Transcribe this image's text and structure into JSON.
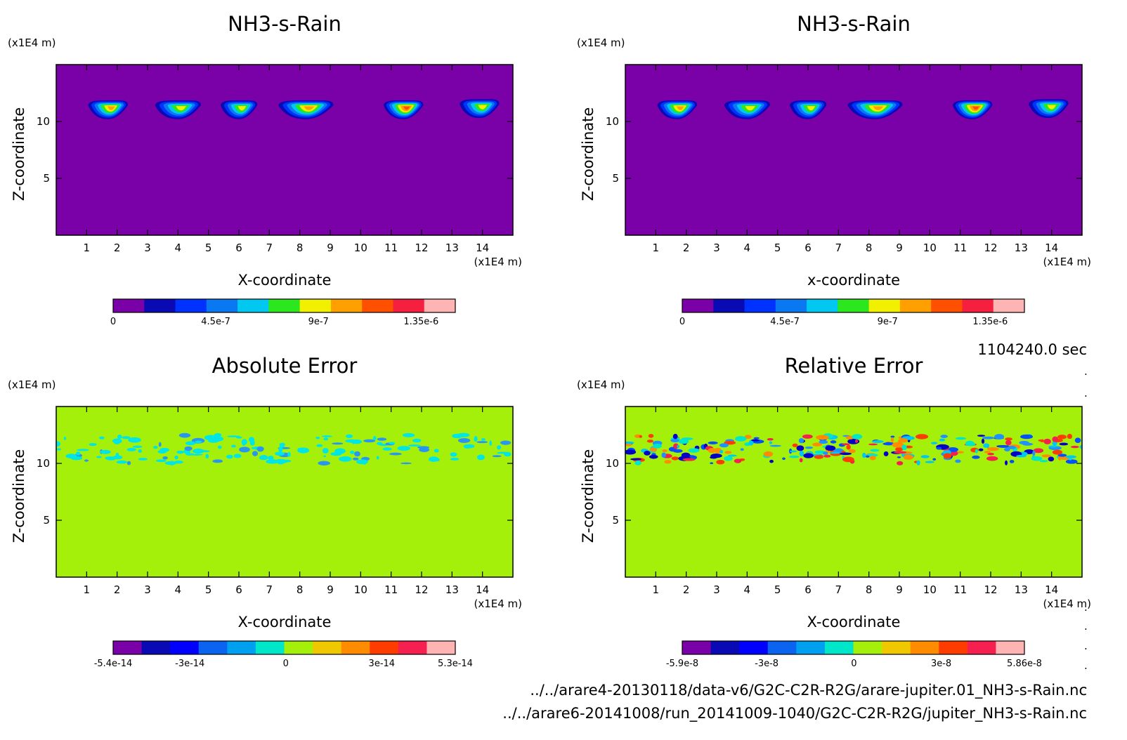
{
  "figure": {
    "time_label": "1104240.0 sec",
    "files": [
      "../../arare4-20130118/data-v6/G2C-C2R-R2G/arare-jupiter.01_NH3-s-Rain.nc",
      "../../arare6-20141008/run_20141009-1040/G2C-C2R-R2G/jupiter_NH3-s-Rain.nc"
    ],
    "edge_marks": [
      ".",
      ".",
      ".",
      ".",
      ".",
      ".",
      "."
    ]
  },
  "chart_data": [
    {
      "type": "heatmap",
      "title": "NH3-s-Rain",
      "xlabel": "X-coordinate",
      "ylabel": "Z-coordinate",
      "x_unit": "(x1E4 m)",
      "y_unit": "(x1E4 m)",
      "xlim": [
        0,
        15
      ],
      "ylim": [
        0,
        15
      ],
      "x_ticks": [
        1,
        2,
        3,
        4,
        5,
        6,
        7,
        8,
        9,
        10,
        11,
        12,
        13,
        14
      ],
      "y_ticks": [
        5,
        10
      ],
      "background": "#7a00a8",
      "pattern": "cells",
      "cells": [
        {
          "x": 1.7,
          "z": 11.2,
          "w": 1.3,
          "peak": 0.85
        },
        {
          "x": 4.0,
          "z": 11.2,
          "w": 1.5,
          "peak": 0.75
        },
        {
          "x": 6.0,
          "z": 11.2,
          "w": 1.2,
          "peak": 0.7
        },
        {
          "x": 8.2,
          "z": 11.2,
          "w": 1.8,
          "peak": 0.85
        },
        {
          "x": 11.4,
          "z": 11.2,
          "w": 1.3,
          "peak": 1.0
        },
        {
          "x": 13.9,
          "z": 11.3,
          "w": 1.3,
          "peak": 0.75
        }
      ],
      "colorbar": {
        "colors": [
          "#7a00a8",
          "#0a0ab4",
          "#0032ff",
          "#0a78f0",
          "#00c8f0",
          "#2ce61e",
          "#f0f000",
          "#ffa000",
          "#ff5000",
          "#f52040",
          "#ffb4b4"
        ],
        "labels": [
          "0",
          "4.5e-7",
          "9e-7",
          "1.35e-6"
        ],
        "label_positions": [
          0,
          4.5e-07,
          9e-07,
          1.35e-06
        ],
        "range": [
          0,
          1.5e-06
        ]
      }
    },
    {
      "type": "heatmap",
      "title": "NH3-s-Rain",
      "xlabel": "x-coordinate",
      "ylabel": "Z-coordinate",
      "x_unit": "(x1E4 m)",
      "y_unit": "(x1E4 m)",
      "xlim": [
        0,
        15
      ],
      "ylim": [
        0,
        15
      ],
      "x_ticks": [
        1,
        2,
        3,
        4,
        5,
        6,
        7,
        8,
        9,
        10,
        11,
        12,
        13,
        14
      ],
      "y_ticks": [
        5,
        10
      ],
      "background": "#7a00a8",
      "pattern": "cells",
      "cells": [
        {
          "x": 1.7,
          "z": 11.2,
          "w": 1.3,
          "peak": 0.85
        },
        {
          "x": 4.0,
          "z": 11.2,
          "w": 1.5,
          "peak": 0.75
        },
        {
          "x": 6.0,
          "z": 11.2,
          "w": 1.2,
          "peak": 0.7
        },
        {
          "x": 8.2,
          "z": 11.2,
          "w": 1.8,
          "peak": 0.85
        },
        {
          "x": 11.4,
          "z": 11.2,
          "w": 1.3,
          "peak": 1.0
        },
        {
          "x": 13.9,
          "z": 11.3,
          "w": 1.3,
          "peak": 0.75
        }
      ],
      "colorbar": {
        "colors": [
          "#7a00a8",
          "#0a0ab4",
          "#0032ff",
          "#0a78f0",
          "#00c8f0",
          "#2ce61e",
          "#f0f000",
          "#ffa000",
          "#ff5000",
          "#f52040",
          "#ffb4b4"
        ],
        "labels": [
          "0",
          "4.5e-7",
          "9e-7",
          "1.35e-6"
        ],
        "label_positions": [
          0,
          4.5e-07,
          9e-07,
          1.35e-06
        ],
        "range": [
          0,
          1.5e-06
        ]
      }
    },
    {
      "type": "heatmap",
      "title": "Absolute Error",
      "xlabel": "X-coordinate",
      "ylabel": "Z-coordinate",
      "x_unit": "(x1E4 m)",
      "y_unit": "(x1E4 m)",
      "xlim": [
        0,
        15
      ],
      "ylim": [
        0,
        15
      ],
      "x_ticks": [
        1,
        2,
        3,
        4,
        5,
        6,
        7,
        8,
        9,
        10,
        11,
        12,
        13,
        14
      ],
      "y_ticks": [
        5,
        10
      ],
      "background": "#a5f00a",
      "pattern": "noise",
      "band": [
        10,
        12.5
      ],
      "noise_colors": [
        "#00e6e6",
        "#00e6e6",
        "#00e6e6",
        "#2896f0"
      ],
      "noise_density": 0.35,
      "colorbar": {
        "colors": [
          "#7a00a8",
          "#0a0ab4",
          "#0000ff",
          "#0a64f0",
          "#00a0f0",
          "#00e6c8",
          "#a5f00a",
          "#f0c800",
          "#ff8c00",
          "#ff3c00",
          "#f52050",
          "#ffb4b4"
        ],
        "labels": [
          "-5.4e-14",
          "-3e-14",
          "0",
          "3e-14",
          "5.3e-14"
        ],
        "label_positions": [
          -5.4e-14,
          -3e-14,
          0,
          3e-14,
          5.3e-14
        ],
        "range": [
          -5.4e-14,
          5.3e-14
        ]
      }
    },
    {
      "type": "heatmap",
      "title": "Relative Error",
      "xlabel": "X-coordinate",
      "ylabel": "Z-coordinate",
      "x_unit": "(x1E4 m)",
      "y_unit": "(x1E4 m)",
      "xlim": [
        0,
        15
      ],
      "ylim": [
        0,
        15
      ],
      "x_ticks": [
        1,
        2,
        3,
        4,
        5,
        6,
        7,
        8,
        9,
        10,
        11,
        12,
        13,
        14
      ],
      "y_ticks": [
        5,
        10
      ],
      "background": "#a5f00a",
      "pattern": "noise",
      "band": [
        10,
        12.5
      ],
      "noise_colors": [
        "#0050ff",
        "#1e90ff",
        "#00c8f0",
        "#ff3c00",
        "#ff8c00",
        "#0000c8",
        "#f52050",
        "#00e6c8"
      ],
      "noise_density": 0.6,
      "colorbar": {
        "colors": [
          "#7a00a8",
          "#0a0ab4",
          "#0000ff",
          "#0a64f0",
          "#00a0f0",
          "#00e6c8",
          "#a5f00a",
          "#f0c800",
          "#ff8c00",
          "#ff3c00",
          "#f52050",
          "#ffb4b4"
        ],
        "labels": [
          "-5.9e-8",
          "-3e-8",
          "0",
          "3e-8",
          "5.86e-8"
        ],
        "label_positions": [
          -5.9e-08,
          -3e-08,
          0,
          3e-08,
          5.86e-08
        ],
        "range": [
          -5.9e-08,
          5.86e-08
        ]
      }
    }
  ]
}
